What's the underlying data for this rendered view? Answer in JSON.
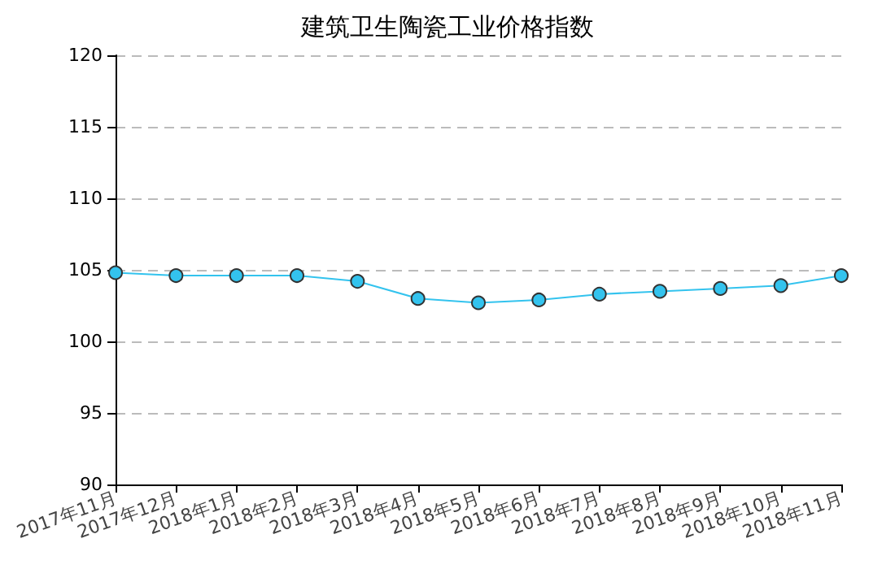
{
  "chart_data": {
    "type": "line",
    "title": "建筑卫生陶瓷工业价格指数",
    "categories": [
      "2017年11月",
      "2017年12月",
      "2018年1月",
      "2018年2月",
      "2018年3月",
      "2018年4月",
      "2018年5月",
      "2018年6月",
      "2018年7月",
      "2018年8月",
      "2018年9月",
      "2018年10月",
      "2018年11月"
    ],
    "series": [
      {
        "color": "#33c3ee",
        "values": [
          104.8,
          104.6,
          104.6,
          104.6,
          104.2,
          103.0,
          102.7,
          102.9,
          103.3,
          103.5,
          103.7,
          103.9,
          104.6
        ]
      }
    ],
    "ylim": [
      90,
      120
    ],
    "yticks": [
      90,
      95,
      100,
      105,
      110,
      115,
      120
    ],
    "grid": "y",
    "marker": "circle",
    "line_style": "solid"
  }
}
